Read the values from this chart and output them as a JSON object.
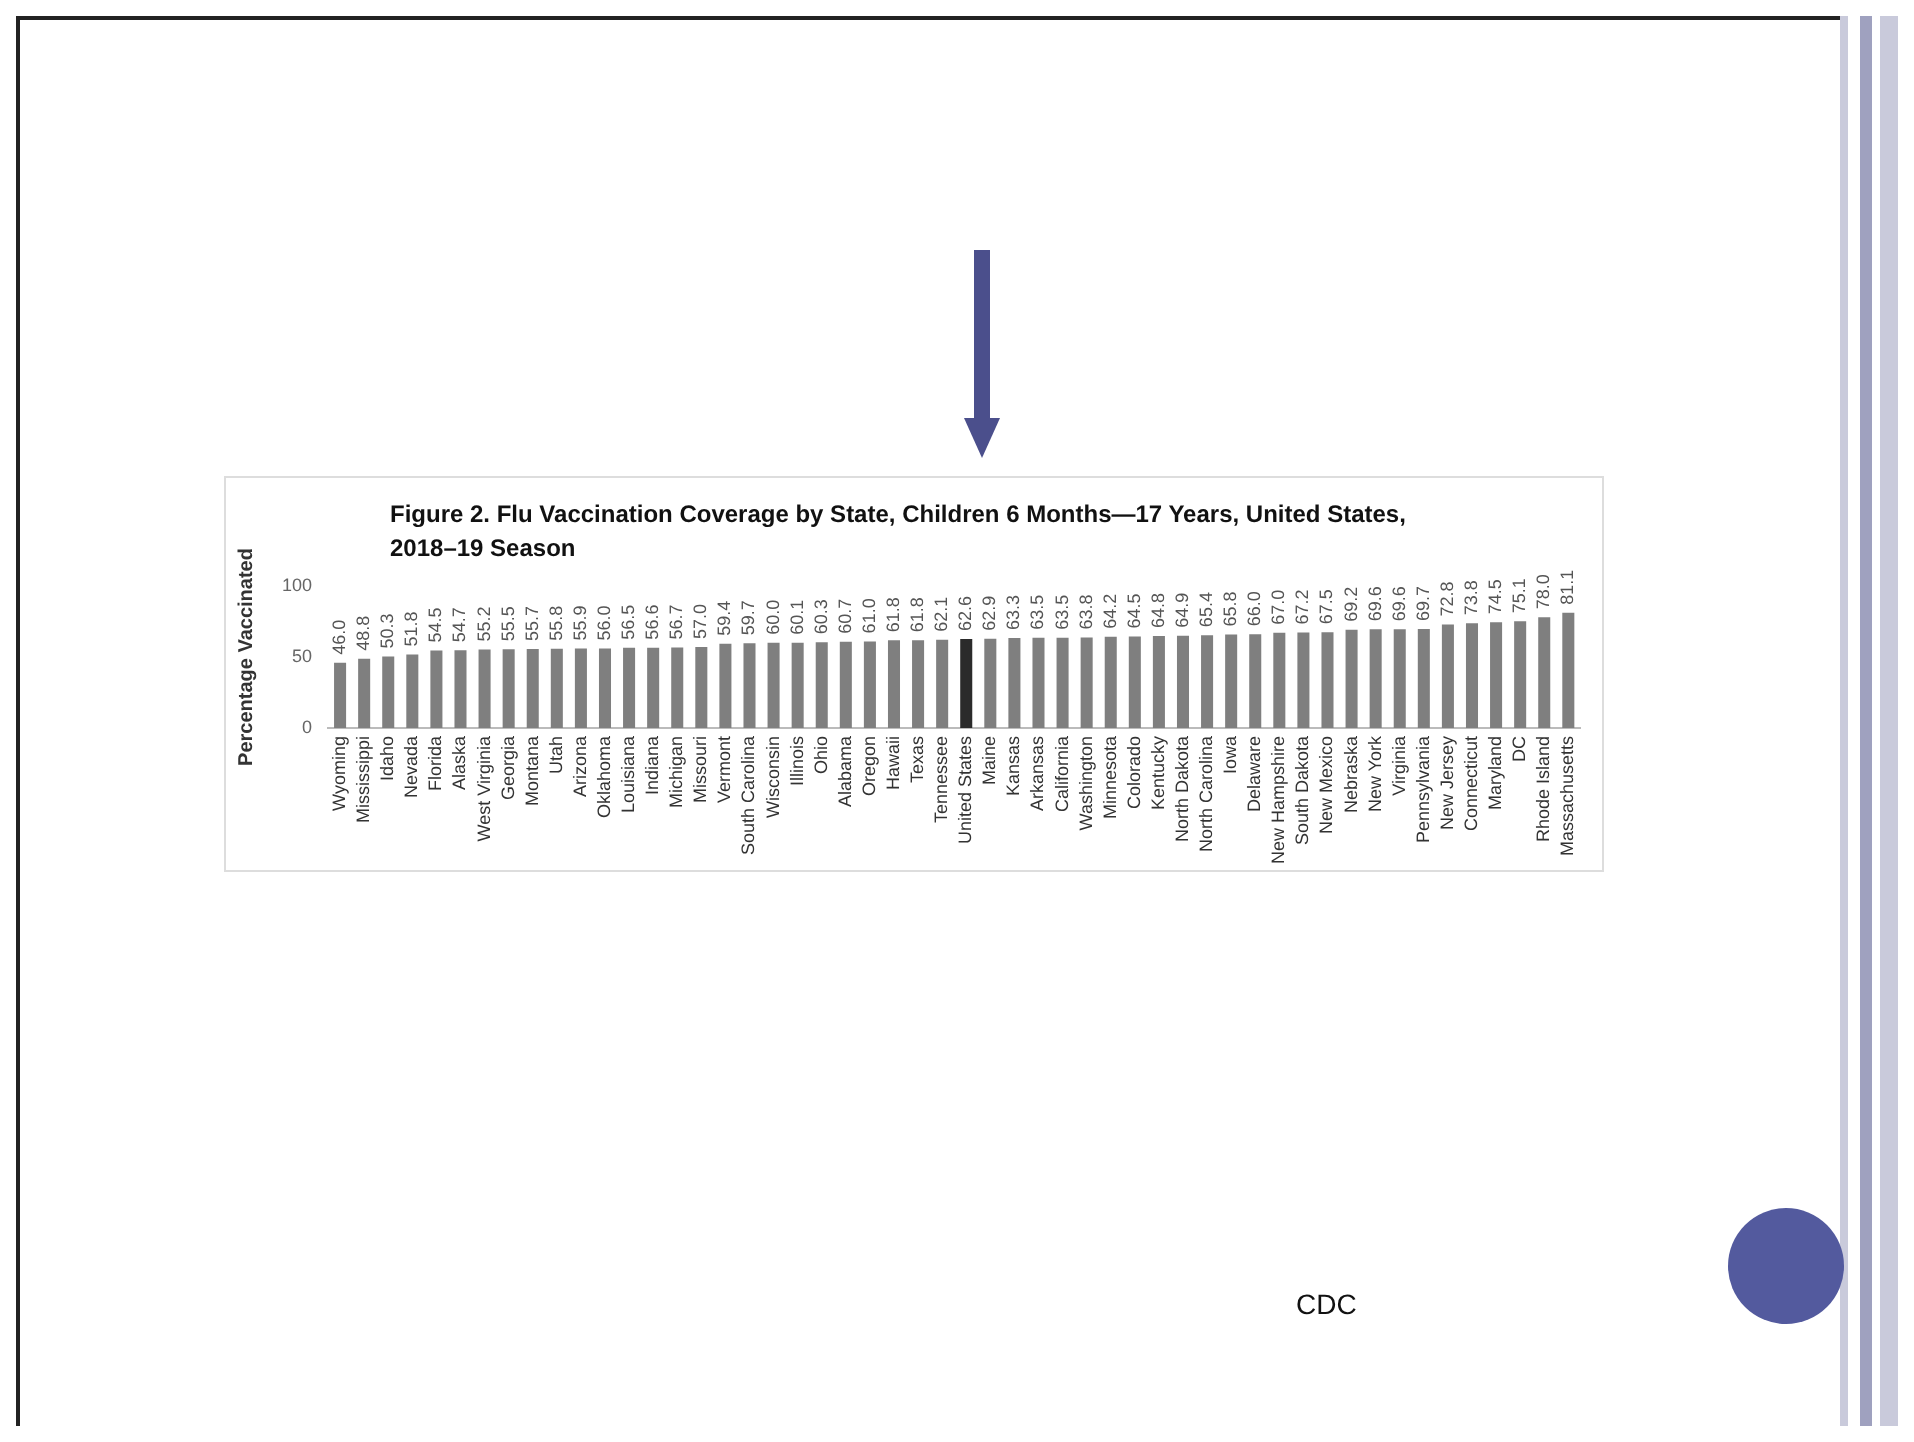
{
  "chart_data": {
    "type": "bar",
    "title": "Figure 2. Flu Vaccination Coverage by State, Children 6 Months—17 Years, United States, 2018–19 Season",
    "ylabel": "Percentage Vaccinated",
    "categories": [
      "Wyoming",
      "Mississippi",
      "Idaho",
      "Nevada",
      "Florida",
      "Alaska",
      "West Virginia",
      "Georgia",
      "Montana",
      "Utah",
      "Arizona",
      "Oklahoma",
      "Louisiana",
      "Indiana",
      "Michigan",
      "Missouri",
      "Vermont",
      "South Carolina",
      "Wisconsin",
      "Illinois",
      "Ohio",
      "Alabama",
      "Oregon",
      "Hawaii",
      "Texas",
      "Tennessee",
      "United States",
      "Maine",
      "Kansas",
      "Arkansas",
      "California",
      "Washington",
      "Minnesota",
      "Colorado",
      "Kentucky",
      "North Dakota",
      "North Carolina",
      "Iowa",
      "Delaware",
      "New Hampshire",
      "South Dakota",
      "New Mexico",
      "Nebraska",
      "New York",
      "Virginia",
      "Pennsylvania",
      "New Jersey",
      "Connecticut",
      "Maryland",
      "DC",
      "Rhode Island",
      "Massachusetts"
    ],
    "values": [
      46.0,
      48.8,
      50.3,
      51.8,
      54.5,
      54.7,
      55.2,
      55.5,
      55.7,
      55.8,
      55.9,
      56.0,
      56.5,
      56.6,
      56.7,
      57.0,
      59.4,
      59.7,
      60.0,
      60.1,
      60.3,
      60.7,
      61.0,
      61.8,
      61.8,
      62.1,
      62.6,
      62.9,
      63.3,
      63.5,
      63.5,
      63.8,
      64.2,
      64.5,
      64.8,
      64.9,
      65.4,
      65.8,
      66.0,
      67.0,
      67.2,
      67.5,
      69.2,
      69.6,
      69.6,
      69.7,
      72.8,
      73.8,
      74.5,
      75.1,
      78.0,
      81.1
    ],
    "colors": [
      "#7f7f7f",
      "#7f7f7f",
      "#7f7f7f",
      "#7f7f7f",
      "#7f7f7f",
      "#7f7f7f",
      "#7f7f7f",
      "#7f7f7f",
      "#7f7f7f",
      "#7f7f7f",
      "#7f7f7f",
      "#7f7f7f",
      "#7f7f7f",
      "#7f7f7f",
      "#7f7f7f",
      "#7f7f7f",
      "#7f7f7f",
      "#7f7f7f",
      "#7f7f7f",
      "#7f7f7f",
      "#7f7f7f",
      "#7f7f7f",
      "#7f7f7f",
      "#7f7f7f",
      "#7f7f7f",
      "#7f7f7f",
      "#2b2b2b",
      "#7f7f7f",
      "#7f7f7f",
      "#7f7f7f",
      "#7f7f7f",
      "#7f7f7f",
      "#7f7f7f",
      "#7f7f7f",
      "#7f7f7f",
      "#7f7f7f",
      "#7f7f7f",
      "#7f7f7f",
      "#7f7f7f",
      "#7f7f7f",
      "#7f7f7f",
      "#7f7f7f",
      "#7f7f7f",
      "#7f7f7f",
      "#7f7f7f",
      "#7f7f7f",
      "#7f7f7f",
      "#7f7f7f",
      "#7f7f7f",
      "#7f7f7f",
      "#7f7f7f",
      "#7f7f7f"
    ],
    "value_labels": [
      "46.0",
      "48.8",
      "50.3",
      "51.8",
      "54.5",
      "54.7",
      "55.2",
      "55.5",
      "55.7",
      "55.8",
      "55.9",
      "56.0",
      "56.5",
      "56.6",
      "56.7",
      "57.0",
      "59.4",
      "59.7",
      "60.0",
      "60.1",
      "60.3",
      "60.7",
      "61.0",
      "61.8",
      "61.8",
      "62.1",
      "62.6",
      "62.9",
      "63.3",
      "63.5",
      "63.5",
      "63.8",
      "64.2",
      "64.5",
      "64.8",
      "64.9",
      "65.4",
      "65.8",
      "66.0",
      "67.0",
      "67.2",
      "67.5",
      "69.2",
      "69.6",
      "69.6",
      "69.7",
      "72.8",
      "73.8",
      "74.5",
      "75.1",
      "78.0",
      "81.1"
    ],
    "ylim": [
      0,
      100
    ],
    "yticks": [
      0,
      50,
      100
    ],
    "grid": false,
    "legend": false,
    "annotations": [
      "CDC"
    ]
  }
}
